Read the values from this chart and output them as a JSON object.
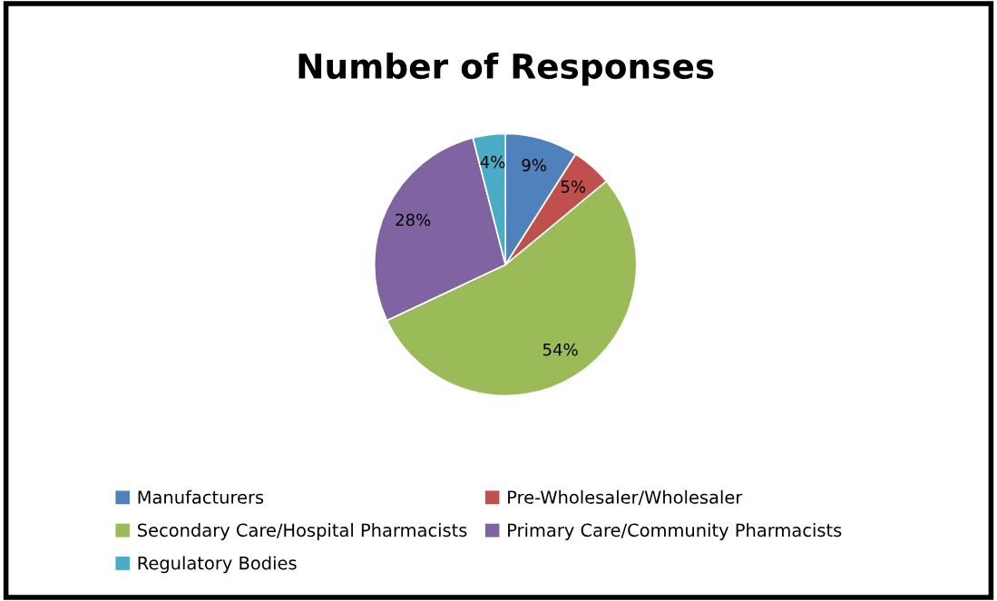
{
  "chart_data": {
    "type": "pie",
    "title": "Number of Responses",
    "categories": [
      "Manufacturers",
      "Pre-Wholesaler/Wholesaler",
      "Secondary Care/Hospital Pharmacists",
      "Primary Care/Community Pharmacists",
      "Regulatory Bodies"
    ],
    "values": [
      9,
      5,
      54,
      28,
      4
    ],
    "colors": [
      "#4f81bd",
      "#c0504d",
      "#9bbb59",
      "#8064a2",
      "#4bacc6"
    ],
    "value_labels": [
      "9%",
      "5%",
      "54%",
      "28%",
      "4%"
    ],
    "legend": "bottom"
  }
}
